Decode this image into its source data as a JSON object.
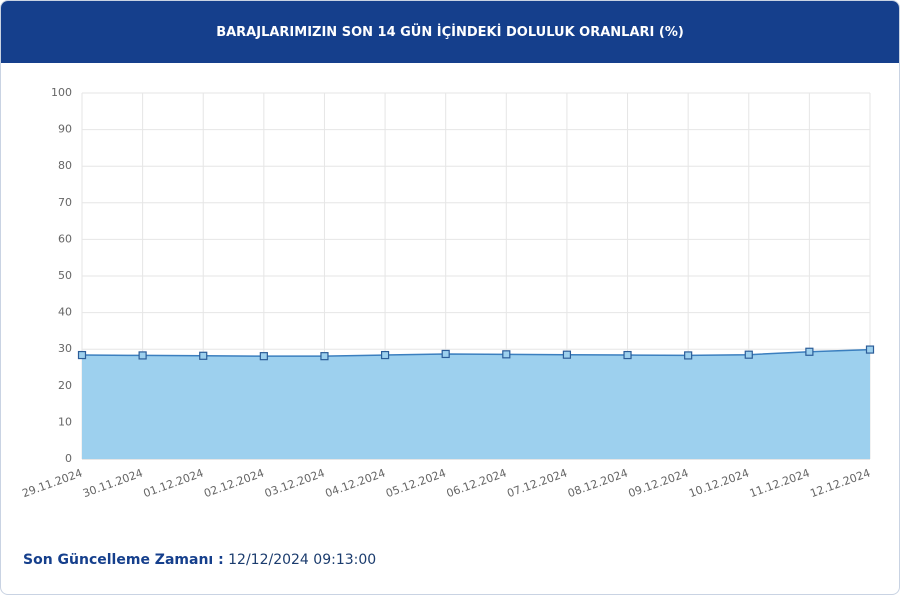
{
  "chart_data": {
    "type": "area",
    "title": "BARAJLARIMIZIN SON 14 GÜN İÇİNDEKİ DOLULUK ORANLARI (%)",
    "categories": [
      "29.11.2024",
      "30.11.2024",
      "01.12.2024",
      "02.12.2024",
      "03.12.2024",
      "04.12.2024",
      "05.12.2024",
      "06.12.2024",
      "07.12.2024",
      "08.12.2024",
      "09.12.2024",
      "10.12.2024",
      "11.12.2024",
      "12.12.2024"
    ],
    "values": [
      28.4,
      28.3,
      28.2,
      28.1,
      28.1,
      28.4,
      28.7,
      28.6,
      28.5,
      28.4,
      28.3,
      28.5,
      29.3,
      29.9
    ],
    "color": "#3b7fbf",
    "fill": "#9dd0ee",
    "ylim": [
      0,
      100
    ],
    "yticks": [
      0,
      10,
      20,
      30,
      40,
      50,
      60,
      70,
      80,
      90,
      100
    ],
    "grid": true
  },
  "footer": {
    "label": "Son Güncelleme Zamanı :",
    "value": "12/12/2024 09:13:00"
  }
}
